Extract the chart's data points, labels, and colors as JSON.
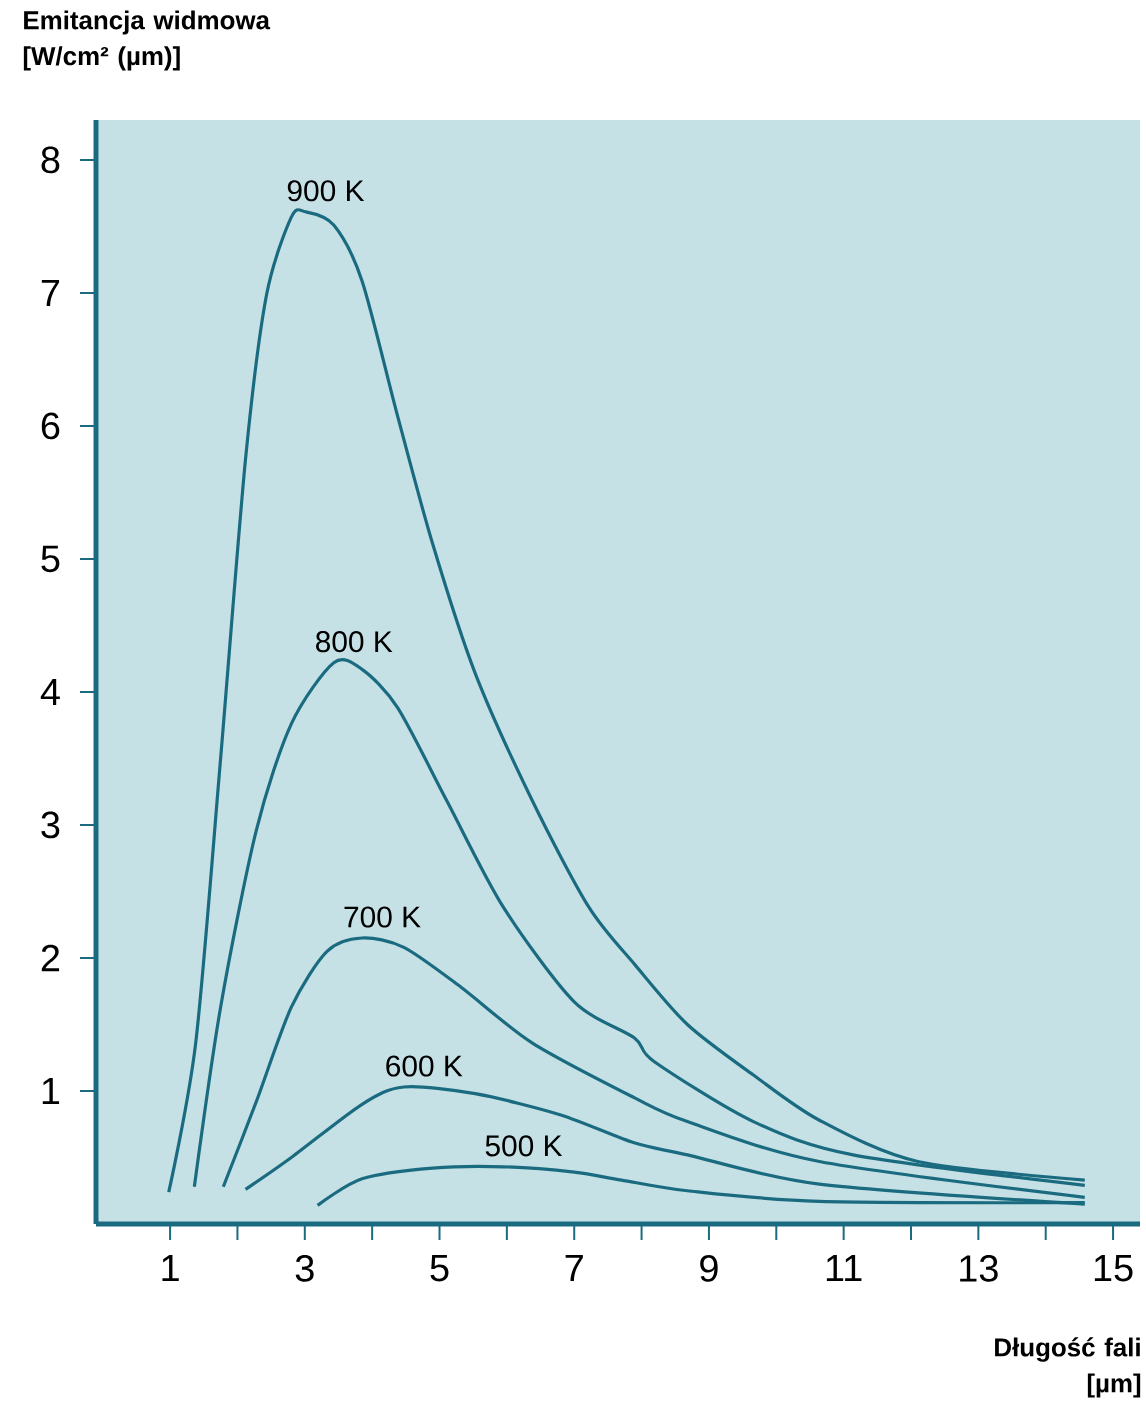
{
  "chart_data": {
    "type": "line",
    "ylabel": "Emitancja widmowa\n[W/cm² (µm)]",
    "xlabel": "Długość fali\n[µm]",
    "xlim": [
      -0.1,
      15.4
    ],
    "ylim": [
      0,
      8.3
    ],
    "xticks": [
      1,
      {
        "value": 2,
        "label": null
      },
      3,
      {
        "value": 4,
        "label": null
      },
      5,
      {
        "value": 6,
        "label": null
      },
      7,
      {
        "value": 8,
        "label": null
      },
      9,
      {
        "value": 10,
        "label": null
      },
      11,
      {
        "value": 12,
        "label": null
      },
      13,
      {
        "value": 14,
        "label": null
      },
      15
    ],
    "yticks": [
      1,
      2,
      3,
      4,
      5,
      6,
      7,
      8
    ],
    "grid": false,
    "legend": false,
    "marker": "none",
    "line_style": "solid",
    "series": [
      {
        "name": "900  K",
        "color": "#1b6b80",
        "x": [
          0.98,
          1.38,
          1.75,
          2.12,
          2.43,
          2.8,
          3.01,
          3.43,
          3.85,
          4.38,
          4.9,
          5.53,
          6.38,
          7.22,
          7.9,
          8.68,
          9.66,
          10.64,
          12.1,
          14.58
        ],
        "values": [
          0.24,
          1.36,
          3.5,
          5.75,
          6.98,
          7.57,
          7.61,
          7.51,
          7.09,
          6.07,
          5.11,
          4.14,
          3.18,
          2.38,
          1.95,
          1.5,
          1.12,
          0.78,
          0.47,
          0.33
        ]
      },
      {
        "name": "800 K",
        "color": "#1b6b80",
        "x": [
          1.36,
          1.75,
          2.28,
          2.8,
          3.43,
          3.85,
          4.38,
          5.11,
          5.95,
          7.0,
          7.89,
          8.19,
          9.66,
          11.14,
          14.58
        ],
        "values": [
          0.28,
          1.63,
          2.96,
          3.76,
          4.22,
          4.17,
          3.88,
          3.18,
          2.38,
          1.67,
          1.4,
          1.22,
          0.77,
          0.52,
          0.29
        ]
      },
      {
        "name": "700 K",
        "color": "#1b6b80",
        "x": [
          1.79,
          2.28,
          2.8,
          3.33,
          3.85,
          4.47,
          5.32,
          6.38,
          7.89,
          8.68,
          10.64,
          14.58
        ],
        "values": [
          0.28,
          0.92,
          1.63,
          2.05,
          2.15,
          2.08,
          1.78,
          1.36,
          0.95,
          0.77,
          0.47,
          0.2
        ]
      },
      {
        "name": "600 K",
        "color": "#1b6b80",
        "x": [
          2.12,
          2.8,
          3.85,
          4.47,
          5.53,
          6.8,
          7.89,
          8.68,
          10.64,
          14.58
        ],
        "values": [
          0.26,
          0.5,
          0.9,
          1.03,
          0.98,
          0.82,
          0.61,
          0.52,
          0.3,
          0.15
        ]
      },
      {
        "name": "500 K",
        "color": "#1b6b80",
        "x": [
          3.19,
          3.85,
          4.9,
          5.95,
          7.0,
          7.7,
          8.68,
          10.64,
          14.58
        ],
        "values": [
          0.14,
          0.34,
          0.42,
          0.43,
          0.39,
          0.33,
          0.25,
          0.17,
          0.16
        ]
      }
    ]
  }
}
